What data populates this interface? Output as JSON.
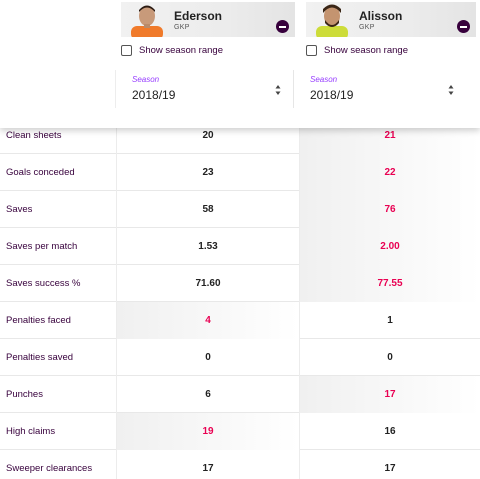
{
  "players": [
    {
      "name": "Ederson",
      "position": "GKP",
      "show_season_range": "Show season range",
      "season_label": "Season",
      "season_value": "2018/19",
      "shirt_color": "#f07a2a"
    },
    {
      "name": "Alisson",
      "position": "GKP",
      "show_season_range": "Show season range",
      "season_label": "Season",
      "season_value": "2018/19",
      "shirt_color": "#cddc39"
    }
  ],
  "colors": {
    "brand": "#37003c",
    "highlight": "#e90052",
    "season_label": "#963cff"
  },
  "stats": [
    {
      "label": "Clean sheets",
      "p1": "20",
      "p2": "21",
      "best": "p2"
    },
    {
      "label": "Goals conceded",
      "p1": "23",
      "p2": "22",
      "best": "p2"
    },
    {
      "label": "Saves",
      "p1": "58",
      "p2": "76",
      "best": "p2"
    },
    {
      "label": "Saves per match",
      "p1": "1.53",
      "p2": "2.00",
      "best": "p2"
    },
    {
      "label": "Saves success %",
      "p1": "71.60",
      "p2": "77.55",
      "best": "p2"
    },
    {
      "label": "Penalties faced",
      "p1": "4",
      "p2": "1",
      "best": "p1"
    },
    {
      "label": "Penalties saved",
      "p1": "0",
      "p2": "0",
      "best": "none"
    },
    {
      "label": "Punches",
      "p1": "6",
      "p2": "17",
      "best": "p2"
    },
    {
      "label": "High claims",
      "p1": "19",
      "p2": "16",
      "best": "p1"
    },
    {
      "label": "Sweeper clearances",
      "p1": "17",
      "p2": "17",
      "best": "none"
    }
  ]
}
